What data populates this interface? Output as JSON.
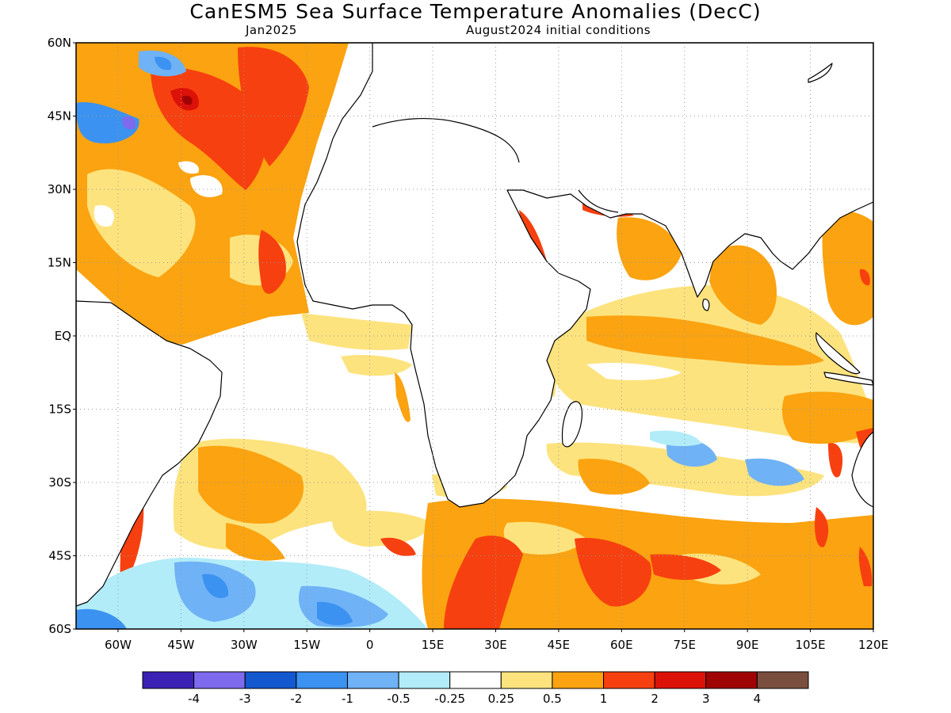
{
  "title": "CanESM5 Sea Surface Temperature Anomalies (DecC)",
  "subtitle_left": "Jan2025",
  "subtitle_right": "August2024 initial conditions",
  "map": {
    "lon_range": [
      -70,
      120
    ],
    "lat_range": [
      -60,
      60
    ],
    "y_ticks": [
      "60N",
      "45N",
      "30N",
      "15N",
      "EQ",
      "15S",
      "30S",
      "45S",
      "60S"
    ],
    "x_ticks": [
      "60W",
      "45W",
      "30W",
      "15W",
      "0",
      "15E",
      "30E",
      "45E",
      "60E",
      "75E",
      "90E",
      "105E",
      "120E"
    ],
    "gridlines": "dotted"
  },
  "colorbar": {
    "colors": [
      "#3b22b4",
      "#7d6aec",
      "#1358cf",
      "#3b92f0",
      "#6fb2f6",
      "#b2ecf8",
      "#ffffff",
      "#fde37e",
      "#fba310",
      "#f7400f",
      "#dc1208",
      "#a00303",
      "#7a4e3e"
    ],
    "labels": [
      "-4",
      "-3",
      "-2",
      "-1",
      "-0.5",
      "-0.25",
      "0.25",
      "0.5",
      "1",
      "2",
      "3",
      "4"
    ]
  }
}
